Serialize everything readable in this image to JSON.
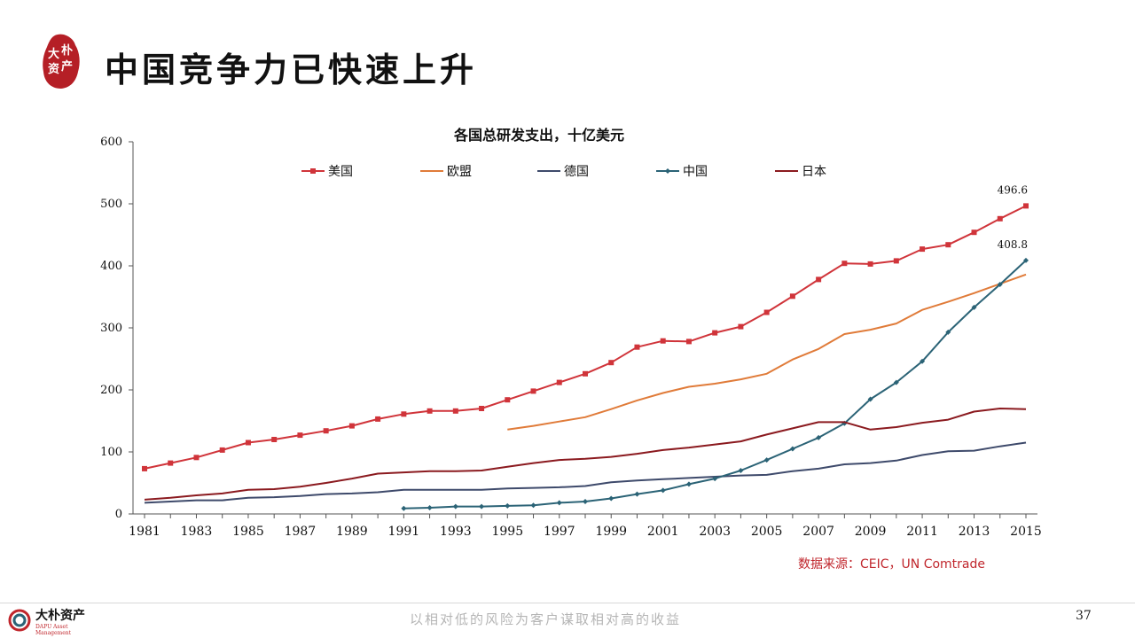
{
  "header": {
    "title": "中国竞争力已快速上升",
    "logo_text": [
      "大",
      "朴",
      "资",
      "产"
    ]
  },
  "chart_data": {
    "type": "line",
    "title": "各国总研发支出，十亿美元",
    "xlabel": "",
    "ylabel": "",
    "ylim": [
      0,
      600
    ],
    "yticks": [
      "0",
      "100",
      "200",
      "300",
      "400",
      "500",
      "600"
    ],
    "xlim": [
      1981,
      2015
    ],
    "xticks": [
      "1981",
      "1983",
      "1985",
      "1987",
      "1989",
      "1991",
      "1993",
      "1995",
      "1997",
      "1999",
      "2001",
      "2003",
      "2005",
      "2007",
      "2009",
      "2011",
      "2013",
      "2015"
    ],
    "legend_position": "top",
    "grid": false,
    "series": [
      {
        "name": "美国",
        "color": "#d0343a",
        "marker": "square",
        "x": [
          1981,
          1982,
          1983,
          1984,
          1985,
          1986,
          1987,
          1988,
          1989,
          1990,
          1991,
          1992,
          1993,
          1994,
          1995,
          1996,
          1997,
          1998,
          1999,
          2000,
          2001,
          2002,
          2003,
          2004,
          2005,
          2006,
          2007,
          2008,
          2009,
          2010,
          2011,
          2012,
          2013,
          2014,
          2015
        ],
        "y": [
          73,
          82,
          91,
          103,
          115,
          120,
          127,
          134,
          142,
          153,
          161,
          166,
          166,
          170,
          184,
          198,
          212,
          226,
          244,
          269,
          279,
          278,
          292,
          302,
          325,
          351,
          378,
          404,
          403,
          408,
          427,
          434,
          454,
          476,
          496.6
        ]
      },
      {
        "name": "欧盟",
        "color": "#e07b39",
        "marker": "none",
        "x": [
          1995,
          1996,
          1997,
          1998,
          1999,
          2000,
          2001,
          2002,
          2003,
          2004,
          2005,
          2006,
          2007,
          2008,
          2009,
          2010,
          2011,
          2012,
          2013,
          2014,
          2015
        ],
        "y": [
          136,
          142,
          149,
          156,
          169,
          183,
          195,
          205,
          210,
          217,
          226,
          249,
          266,
          290,
          297,
          307,
          329,
          342,
          356,
          371,
          386
        ]
      },
      {
        "name": "德国",
        "color": "#3e4a6b",
        "marker": "none",
        "x": [
          1981,
          1982,
          1983,
          1984,
          1985,
          1986,
          1987,
          1988,
          1989,
          1990,
          1991,
          1992,
          1993,
          1994,
          1995,
          1996,
          1997,
          1998,
          1999,
          2000,
          2001,
          2002,
          2003,
          2004,
          2005,
          2006,
          2007,
          2008,
          2009,
          2010,
          2011,
          2012,
          2013,
          2014,
          2015
        ],
        "y": [
          18,
          20,
          22,
          22,
          26,
          27,
          29,
          32,
          33,
          35,
          39,
          39,
          39,
          39,
          41,
          42,
          43,
          45,
          51,
          54,
          56,
          58,
          60,
          62,
          63,
          69,
          73,
          80,
          82,
          86,
          95,
          101,
          102,
          109,
          115
        ]
      },
      {
        "name": "中国",
        "color": "#2b6376",
        "marker": "diamond",
        "x": [
          1991,
          1992,
          1993,
          1994,
          1995,
          1996,
          1997,
          1998,
          1999,
          2000,
          2001,
          2002,
          2003,
          2004,
          2005,
          2006,
          2007,
          2008,
          2009,
          2010,
          2011,
          2012,
          2013,
          2014,
          2015
        ],
        "y": [
          9,
          10,
          12,
          12,
          13,
          14,
          18,
          20,
          25,
          32,
          38,
          48,
          57,
          70,
          87,
          105,
          123,
          146,
          185,
          212,
          246,
          293,
          333,
          370,
          408.8
        ]
      },
      {
        "name": "日本",
        "color": "#8b1a1f",
        "marker": "none",
        "x": [
          1981,
          1982,
          1983,
          1984,
          1985,
          1986,
          1987,
          1988,
          1989,
          1990,
          1991,
          1992,
          1993,
          1994,
          1995,
          1996,
          1997,
          1998,
          1999,
          2000,
          2001,
          2002,
          2003,
          2004,
          2005,
          2006,
          2007,
          2008,
          2009,
          2010,
          2011,
          2012,
          2013,
          2014,
          2015
        ],
        "y": [
          23,
          26,
          30,
          33,
          39,
          40,
          44,
          50,
          57,
          65,
          67,
          69,
          69,
          70,
          76,
          82,
          87,
          89,
          92,
          97,
          103,
          107,
          112,
          117,
          128,
          138,
          148,
          148,
          136,
          140,
          147,
          152,
          165,
          170,
          169
        ]
      }
    ],
    "annotations": [
      {
        "series": "美国",
        "x": 2015,
        "text": "496.6"
      },
      {
        "series": "中国",
        "x": 2015,
        "text": "408.8"
      }
    ]
  },
  "source": "数据来源：CEIC，UN Comtrade",
  "footer": {
    "logo_name": "大朴资产",
    "logo_sub": "DAPU Asset Management",
    "slogan": "以相对低的风险为客户谋取相对高的收益",
    "page_number": "37"
  }
}
